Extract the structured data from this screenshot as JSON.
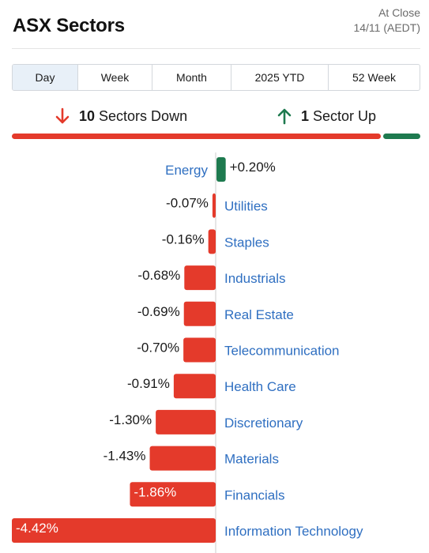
{
  "header": {
    "title": "ASX Sectors",
    "status_line1": "At Close",
    "status_line2": "14/11 (AEDT)"
  },
  "tabs": [
    {
      "label": "Day",
      "active": true
    },
    {
      "label": "Week",
      "active": false
    },
    {
      "label": "Month",
      "active": false
    },
    {
      "label": "2025 YTD",
      "active": false
    },
    {
      "label": "52 Week",
      "active": false
    }
  ],
  "summary": {
    "down_count": "10",
    "down_text": "Sectors Down",
    "up_count": "1",
    "up_text": "Sector Up",
    "down_fraction": 0.909,
    "up_fraction": 0.091
  },
  "colors": {
    "down": "#e43a2b",
    "up": "#1e7a4f",
    "label": "#2f6fc1",
    "axis": "#cccccc"
  },
  "chart_data": {
    "type": "bar",
    "orientation": "horizontal",
    "categories": [
      "Energy",
      "Utilities",
      "Staples",
      "Industrials",
      "Real Estate",
      "Telecommunication",
      "Health Care",
      "Discretionary",
      "Materials",
      "Financials",
      "Information Technology"
    ],
    "values": [
      0.2,
      -0.07,
      -0.16,
      -0.68,
      -0.69,
      -0.7,
      -0.91,
      -1.3,
      -1.43,
      -1.86,
      -4.42
    ],
    "value_labels": [
      "+0.20%",
      "-0.07%",
      "-0.16%",
      "-0.68%",
      "-0.69%",
      "-0.70%",
      "-0.91%",
      "-1.30%",
      "-1.43%",
      "-1.86%",
      "-4.42%"
    ],
    "unit": "%",
    "xlim": [
      -4.42,
      0.2
    ],
    "grid": false
  }
}
